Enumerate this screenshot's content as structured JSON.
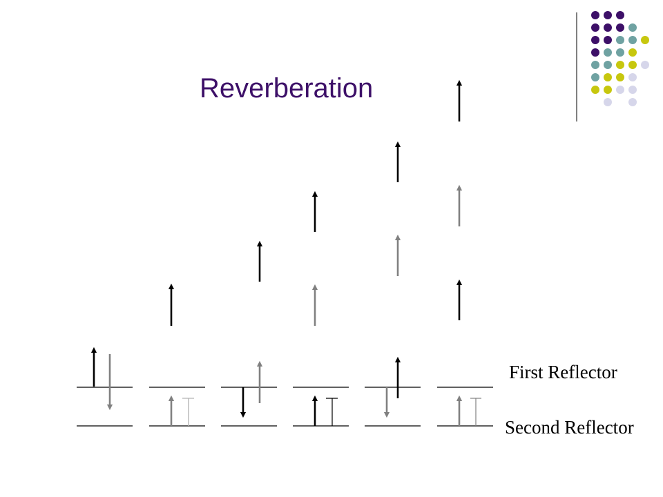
{
  "slide": {
    "title": "Reverberation",
    "title_color": "#3d1068"
  },
  "labels": {
    "first_reflector": "First Reflector",
    "second_reflector": "Second Reflector"
  },
  "colors": {
    "primary_wave": "#000000",
    "reflected_wave": "#808080",
    "thin_reflection": "#b5b5b5",
    "dot_purple": "#3d1068",
    "dot_teal": "#6fa2a2",
    "dot_yellow": "#c7c70e",
    "dot_lavender": "#d6d6ea"
  },
  "decoration": {
    "dot_grid": [
      [
        "purple",
        "purple",
        "purple",
        "",
        ""
      ],
      [
        "purple",
        "purple",
        "purple",
        "teal",
        ""
      ],
      [
        "purple",
        "purple",
        "teal",
        "teal",
        "yellow"
      ],
      [
        "purple",
        "teal",
        "teal",
        "yellow",
        ""
      ],
      [
        "teal",
        "teal",
        "yellow",
        "yellow",
        "lavender"
      ],
      [
        "teal",
        "yellow",
        "yellow",
        "lavender",
        ""
      ],
      [
        "yellow",
        "yellow",
        "lavender",
        "lavender",
        ""
      ],
      [
        "",
        "lavender",
        "",
        "lavender",
        ""
      ]
    ]
  }
}
